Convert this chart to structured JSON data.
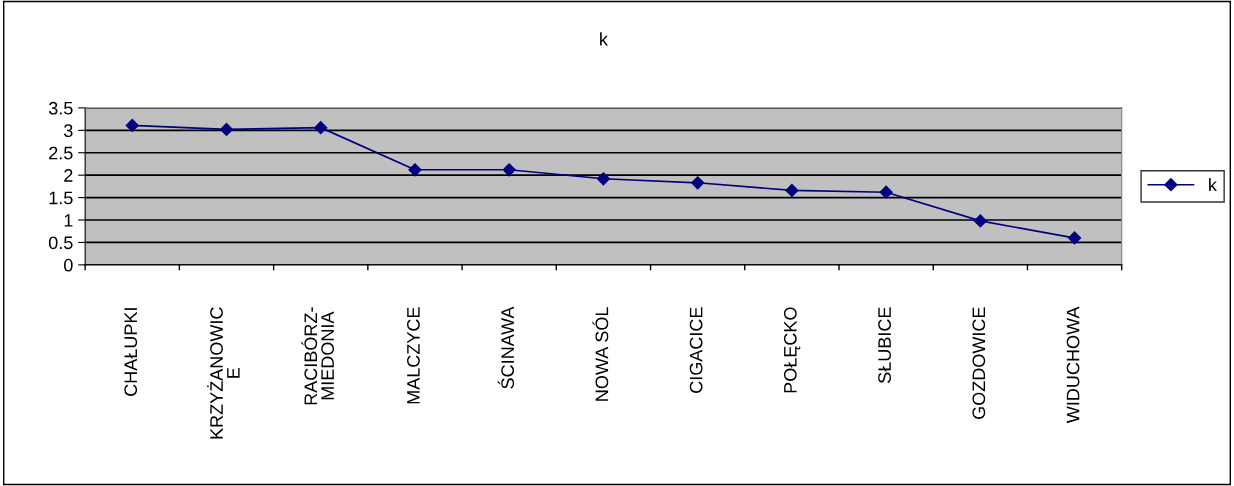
{
  "chart_data": {
    "type": "line",
    "title": "k",
    "categories": [
      "CHAŁUPKI",
      "KRZYŻANOWICE",
      "RACIBÓRZ-MIEDONIA",
      "MALCZYCE",
      "ŚCINAWA",
      "NOWA SÓL",
      "CIGACICE",
      "POŁĘCKO",
      "SŁUBICE",
      "GOZDOWICE",
      "WIDUCHOWA"
    ],
    "series": [
      {
        "name": "k",
        "color": "#000080",
        "values": [
          3.11,
          3.02,
          3.06,
          2.12,
          2.12,
          1.92,
          1.83,
          1.66,
          1.62,
          0.98,
          0.6
        ]
      }
    ],
    "ylim": [
      0,
      3.5
    ],
    "yticks": [
      0,
      0.5,
      1,
      1.5,
      2,
      2.5,
      3,
      3.5
    ],
    "grid": "y",
    "legend": "right",
    "marker": "diamond",
    "line_style": "solid"
  }
}
